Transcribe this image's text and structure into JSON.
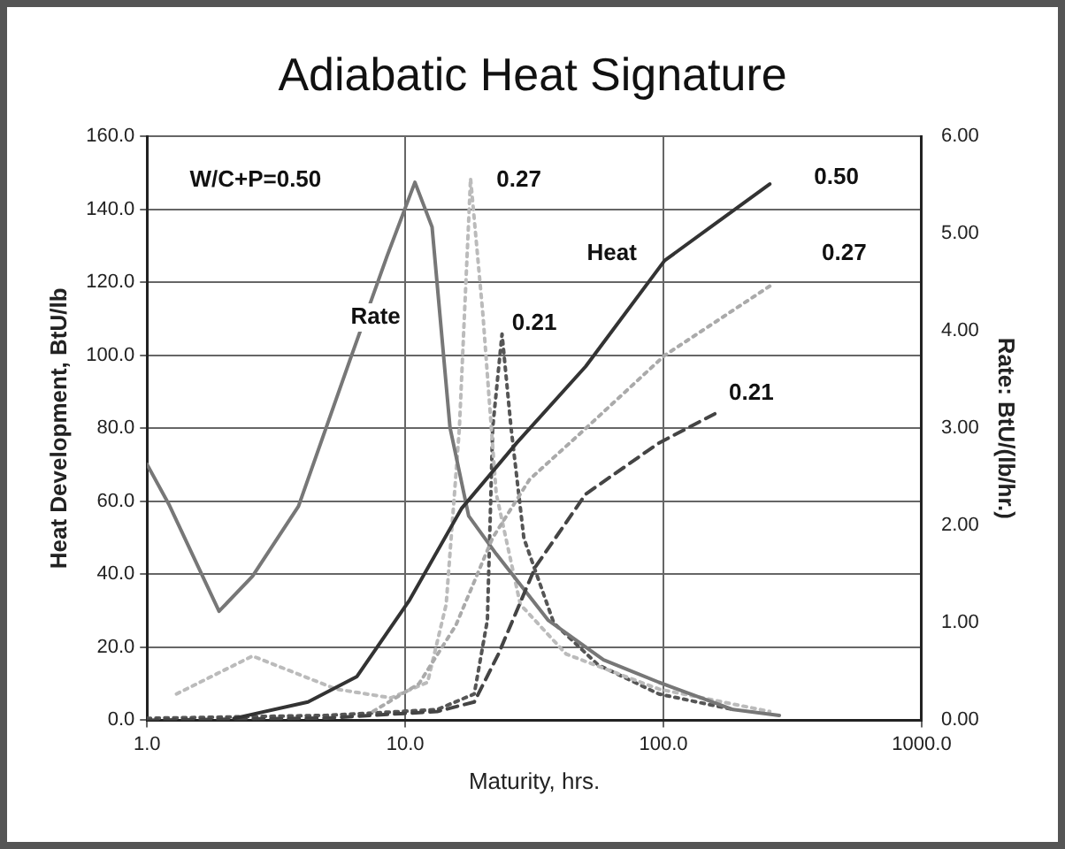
{
  "chart_data": {
    "type": "line",
    "title": "Adiabatic Heat Signature",
    "xlabel": "Maturity, hrs.",
    "ylabel": "Heat Development, BtU/lb",
    "y2label": "Rate: BtU/(lb/hr.)",
    "log": "x",
    "grid": true,
    "legend": false,
    "marker": "none",
    "xlim": [
      1,
      1000
    ],
    "xticks": [
      {
        "value": 1,
        "label": "1.0"
      },
      {
        "value": 10,
        "label": "10.0"
      },
      {
        "value": 100,
        "label": "100.0"
      },
      {
        "value": 1000,
        "label": "1000.0"
      }
    ],
    "ylim": [
      0,
      160
    ],
    "yticks": [
      {
        "value": 0,
        "label": "0.0"
      },
      {
        "value": 20,
        "label": "20.0"
      },
      {
        "value": 40,
        "label": "40.0"
      },
      {
        "value": 60,
        "label": "60.0"
      },
      {
        "value": 80,
        "label": "80.0"
      },
      {
        "value": 100,
        "label": "100.0"
      },
      {
        "value": 120,
        "label": "120.0"
      },
      {
        "value": 140,
        "label": "140.0"
      },
      {
        "value": 160,
        "label": "160.0"
      }
    ],
    "y2lim": [
      0,
      6
    ],
    "y2ticks": [
      {
        "value": 0,
        "label": "0.00"
      },
      {
        "value": 1,
        "label": "1.00"
      },
      {
        "value": 2,
        "label": "2.00"
      },
      {
        "value": 3,
        "label": "3.00"
      },
      {
        "value": 4,
        "label": "4.00"
      },
      {
        "value": 5,
        "label": "5.00"
      },
      {
        "value": 6,
        "label": "6.00"
      }
    ],
    "series": [
      {
        "color": "#333333",
        "line_style": "solid",
        "x": [
          2.17,
          4.2,
          6.5,
          10.4,
          16.5,
          27,
          50,
          101,
          258
        ],
        "values": [
          0.5,
          5,
          12,
          33,
          58,
          76,
          97,
          126,
          147
        ]
      },
      {
        "color": "#aaaaaa",
        "line_style": "dotted",
        "x": [
          7.5,
          11.3,
          15.7,
          21.8,
          30.3,
          50,
          101,
          258
        ],
        "values": [
          2.4,
          10,
          26,
          50,
          66,
          80,
          100,
          119
        ]
      },
      {
        "color": "#444444",
        "line_style": "dashed",
        "x": [
          1,
          4.95,
          13.3,
          18.5,
          22.9,
          31.9,
          50,
          96,
          158
        ],
        "values": [
          0,
          0.6,
          2.4,
          5,
          18,
          42,
          62,
          76,
          84
        ]
      },
      {
        "color": "#777777",
        "line_style": "solid",
        "axis": "y2",
        "x": [
          1,
          1.22,
          1.9,
          2.56,
          3.86,
          6.1,
          8.5,
          10.9,
          12.7,
          14.9,
          17.6,
          22.5,
          35.7,
          58.6,
          96,
          186,
          281
        ],
        "values": [
          2.63,
          2.21,
          1.12,
          1.48,
          2.2,
          3.7,
          4.77,
          5.53,
          5.07,
          3.01,
          2.1,
          1.71,
          1.03,
          0.62,
          0.39,
          0.11,
          0.05
        ]
      },
      {
        "color": "#bbbbbb",
        "line_style": "dotted",
        "axis": "y2",
        "x": [
          1.3,
          2.56,
          5.4,
          8.8,
          12.2,
          14.4,
          16.2,
          17.9,
          20,
          22.5,
          27.9,
          42,
          96,
          258
        ],
        "values": [
          0.27,
          0.66,
          0.32,
          0.23,
          0.39,
          1.19,
          3.0,
          5.57,
          4.16,
          2.33,
          1.19,
          0.68,
          0.32,
          0.09
        ]
      },
      {
        "color": "#555555",
        "line_style": "dotted",
        "axis": "y2",
        "x": [
          1,
          4.95,
          13.3,
          18.5,
          20.8,
          21.8,
          23.7,
          25.7,
          28.8,
          37.6,
          55.8,
          96,
          186
        ],
        "values": [
          0.02,
          0.05,
          0.11,
          0.27,
          1.03,
          3.0,
          3.97,
          3.0,
          1.87,
          1.0,
          0.57,
          0.27,
          0.11
        ]
      }
    ],
    "annotations": [
      "W/C+P=0.50",
      "0.27",
      "Rate",
      "0.21",
      "Heat",
      "0.50",
      "0.27",
      "0.21"
    ]
  }
}
